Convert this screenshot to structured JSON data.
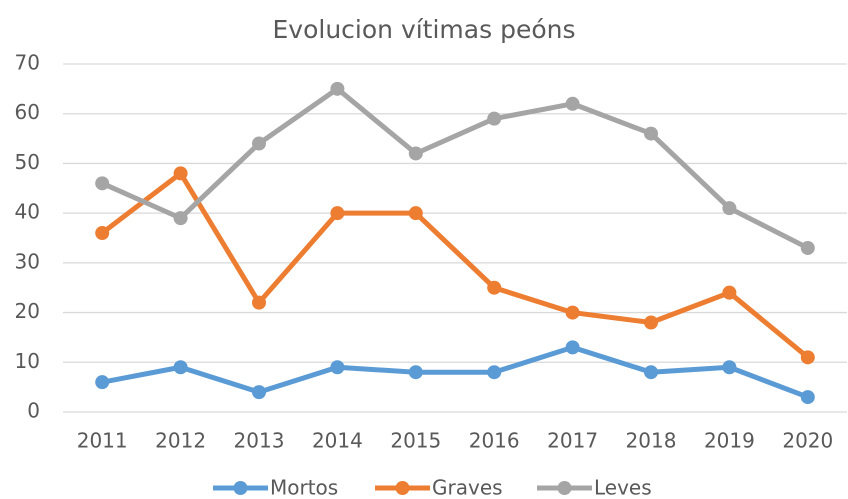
{
  "chart_data": {
    "type": "line",
    "title": "Evolucion vítimas peóns",
    "categories": [
      "2011",
      "2012",
      "2013",
      "2014",
      "2015",
      "2016",
      "2017",
      "2018",
      "2019",
      "2020"
    ],
    "series": [
      {
        "name": "Mortos",
        "color": "#5b9bd5",
        "values": [
          6,
          9,
          4,
          9,
          8,
          8,
          13,
          8,
          9,
          3
        ]
      },
      {
        "name": "Graves",
        "color": "#ed7d31",
        "values": [
          36,
          48,
          22,
          40,
          40,
          25,
          20,
          18,
          24,
          11
        ]
      },
      {
        "name": "Leves",
        "color": "#a5a5a5",
        "values": [
          46,
          39,
          54,
          65,
          52,
          59,
          62,
          56,
          41,
          33
        ]
      }
    ],
    "ylim": [
      0,
      70
    ],
    "yticks": [
      0,
      10,
      20,
      30,
      40,
      50,
      60,
      70
    ],
    "grid": true,
    "legend": "bottom"
  }
}
